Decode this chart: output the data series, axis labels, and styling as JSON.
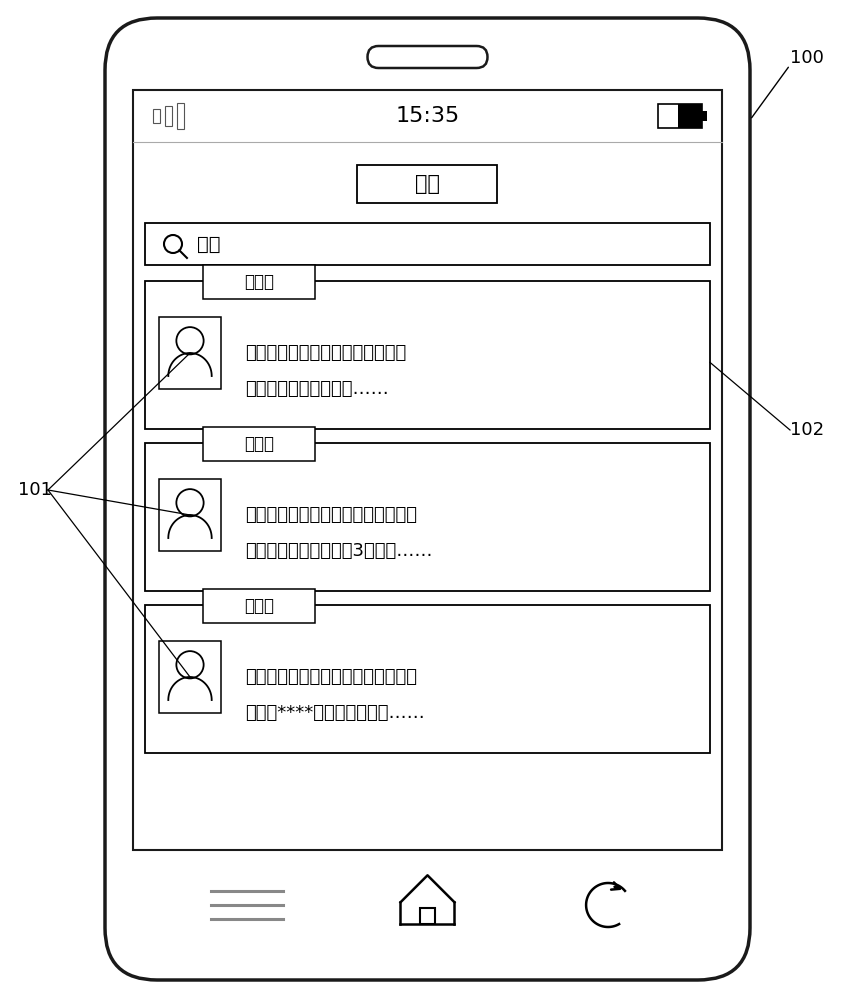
{
  "bg_color": "#ffffff",
  "status_time": "15:35",
  "title_text": "短信",
  "search_text": "搜索",
  "messages": [
    {
      "source": "来源一",
      "text_line1": "您好，我是刚才给您送外卖的送餐",
      "text_line2": "员，首先祝你用餐愉快……"
    },
    {
      "source": "来源二",
      "text_line1": "您好，明天的天气是多云转晴，北风",
      "text_line2": "三四级，最低温度零下3摄氏度……"
    },
    {
      "source": "来源三",
      "text_line1": "您好，您今天的支付账单已经超出使",
      "text_line2": "用额度****元，请查看一下……"
    }
  ],
  "label_100": "100",
  "label_101": "101",
  "label_102": "102"
}
